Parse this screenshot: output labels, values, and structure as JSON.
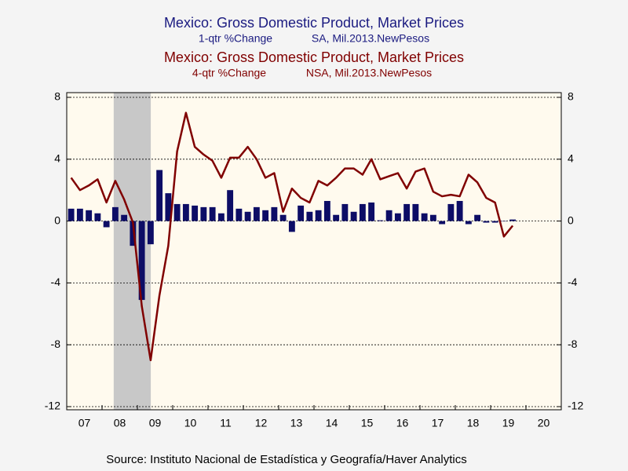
{
  "chart_data": {
    "type": "bar",
    "series": [
      {
        "name": "Mexico: Gross Domestic Product, Market Prices",
        "unit": "1-qtr %Change",
        "detail": "SA, Mil.2013.NewPesos",
        "type": "bar",
        "color": "#0d0d66",
        "values": [
          0.8,
          0.8,
          0.7,
          0.5,
          -0.4,
          0.9,
          0.4,
          -1.6,
          -5.1,
          -1.5,
          3.3,
          1.8,
          1.1,
          1.1,
          1.0,
          0.9,
          0.9,
          0.5,
          2.0,
          0.8,
          0.6,
          0.9,
          0.7,
          0.9,
          0.4,
          -0.7,
          1.0,
          0.6,
          0.7,
          1.3,
          0.4,
          1.1,
          0.6,
          1.1,
          1.2,
          0.05,
          0.7,
          0.5,
          1.1,
          1.1,
          0.5,
          0.4,
          -0.2,
          1.1,
          1.3,
          -0.2,
          0.4,
          -0.1,
          -0.1,
          0.0,
          0.1
        ]
      },
      {
        "name": "Mexico: Gross Domestic Product, Market Prices",
        "unit": "4-qtr %Change",
        "detail": "NSA, Mil.2013.NewPesos",
        "type": "line",
        "color": "#800000",
        "values": [
          2.8,
          2.0,
          2.3,
          2.7,
          1.2,
          2.6,
          1.4,
          -0.1,
          -5.5,
          -9.0,
          -4.8,
          -1.6,
          4.5,
          7.0,
          4.8,
          4.3,
          3.9,
          2.8,
          4.1,
          4.1,
          4.8,
          4.0,
          2.8,
          3.1,
          0.6,
          2.1,
          1.5,
          1.2,
          2.6,
          2.3,
          2.8,
          3.4,
          3.4,
          3.0,
          4.0,
          2.7,
          2.9,
          3.1,
          2.1,
          3.2,
          3.4,
          1.9,
          1.6,
          1.7,
          1.6,
          3.0,
          2.5,
          1.5,
          1.2,
          -1.0,
          -0.3
        ]
      }
    ],
    "x": [
      2007.125,
      2007.375,
      2007.625,
      2007.875,
      2008.125,
      2008.375,
      2008.625,
      2008.875,
      2009.125,
      2009.375,
      2009.625,
      2009.875,
      2010.125,
      2010.375,
      2010.625,
      2010.875,
      2011.125,
      2011.375,
      2011.625,
      2011.875,
      2012.125,
      2012.375,
      2012.625,
      2012.875,
      2013.125,
      2013.375,
      2013.625,
      2013.875,
      2014.125,
      2014.375,
      2014.625,
      2014.875,
      2015.125,
      2015.375,
      2015.625,
      2015.875,
      2016.125,
      2016.375,
      2016.625,
      2016.875,
      2017.125,
      2017.375,
      2017.625,
      2017.875,
      2018.125,
      2018.375,
      2018.625,
      2018.875,
      2019.125,
      2019.375,
      2019.625
    ],
    "xlim": [
      2007,
      2021
    ],
    "xticks": [
      {
        "value": 2007,
        "label": "07"
      },
      {
        "value": 2008,
        "label": "08"
      },
      {
        "value": 2009,
        "label": "09"
      },
      {
        "value": 2010,
        "label": "10"
      },
      {
        "value": 2011,
        "label": "11"
      },
      {
        "value": 2012,
        "label": "12"
      },
      {
        "value": 2013,
        "label": "13"
      },
      {
        "value": 2014,
        "label": "14"
      },
      {
        "value": 2015,
        "label": "15"
      },
      {
        "value": 2016,
        "label": "16"
      },
      {
        "value": 2017,
        "label": "17"
      },
      {
        "value": 2018,
        "label": "18"
      },
      {
        "value": 2019,
        "label": "19"
      },
      {
        "value": 2020,
        "label": "20"
      }
    ],
    "ylim": [
      -12,
      8
    ],
    "yticks": [
      8,
      4,
      0,
      -4,
      -8,
      -12
    ],
    "y2lim": [
      -12,
      8
    ],
    "y2ticks": [
      8,
      4,
      0,
      -4,
      -8,
      -12
    ],
    "grid": true,
    "recession": [
      2008.33,
      2009.38
    ],
    "source": "Source:  Instituto Nacional de Estadística y Geografía/Haver Analytics"
  }
}
